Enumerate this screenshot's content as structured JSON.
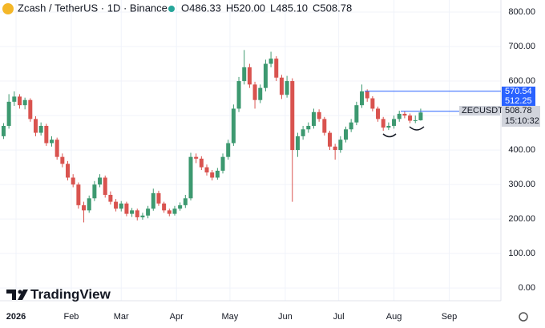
{
  "chart_data": {
    "type": "candlestick",
    "title": "Zcash / TetherUS · 1D · Binance",
    "ohlc_legend": [
      "O486.33",
      "H520.00",
      "L485.10",
      "C508.78"
    ],
    "watermark": "TradingView",
    "up_color": "#3d9970",
    "down_color": "#d9534f",
    "xlim": [
      -9,
      272
    ],
    "ylim": [
      -37,
      835
    ],
    "xticks": [
      {
        "value": 0,
        "label": "2026"
      },
      {
        "value": 31,
        "label": "Feb"
      },
      {
        "value": 59,
        "label": "Mar"
      },
      {
        "value": 90,
        "label": "Apr"
      },
      {
        "value": 120,
        "label": "May"
      },
      {
        "value": 151,
        "label": "Jun"
      },
      {
        "value": 181,
        "label": "Jul"
      },
      {
        "value": 212,
        "label": "Aug"
      },
      {
        "value": 243,
        "label": "Sep"
      }
    ],
    "yticks": [
      {
        "value": 0,
        "label": "0.00"
      },
      {
        "value": 100,
        "label": "100.00"
      },
      {
        "value": 200,
        "label": "200.00"
      },
      {
        "value": 300,
        "label": "300.00"
      },
      {
        "value": 400,
        "label": "400.00"
      },
      {
        "value": 500,
        "label": "500.00"
      },
      {
        "value": 600,
        "label": "600.00"
      },
      {
        "value": 700,
        "label": "700.00"
      },
      {
        "value": 800,
        "label": "800.00"
      }
    ],
    "grid": true,
    "price_lines": [
      {
        "value": 570.54,
        "color": "#2962ff"
      },
      {
        "value": 512.25,
        "color": "#2962ff"
      }
    ],
    "last_price": {
      "symbol": "ZECUSDT",
      "value": 508.78,
      "countdown": "15:10:32",
      "color": "#d1d4dc"
    },
    "candles": [
      [
        -7,
        440,
        478,
        432,
        470
      ],
      [
        -4,
        470,
        562,
        462,
        540
      ],
      [
        -1,
        540,
        570,
        528,
        555
      ],
      [
        2,
        555,
        562,
        520,
        530
      ],
      [
        5,
        530,
        552,
        518,
        545
      ],
      [
        8,
        545,
        550,
        482,
        490
      ],
      [
        11,
        490,
        498,
        440,
        450
      ],
      [
        14,
        450,
        480,
        442,
        470
      ],
      [
        17,
        470,
        476,
        412,
        420
      ],
      [
        20,
        420,
        440,
        410,
        430
      ],
      [
        23,
        430,
        436,
        372,
        380
      ],
      [
        26,
        380,
        390,
        350,
        360
      ],
      [
        29,
        360,
        368,
        312,
        320
      ],
      [
        32,
        320,
        330,
        292,
        300
      ],
      [
        35,
        300,
        306,
        230,
        240
      ],
      [
        38,
        240,
        250,
        190,
        225
      ],
      [
        41,
        225,
        268,
        218,
        260
      ],
      [
        44,
        260,
        310,
        252,
        300
      ],
      [
        47,
        300,
        330,
        292,
        320
      ],
      [
        50,
        320,
        326,
        262,
        270
      ],
      [
        53,
        270,
        280,
        242,
        250
      ],
      [
        56,
        250,
        258,
        222,
        230
      ],
      [
        59,
        230,
        252,
        222,
        245
      ],
      [
        62,
        245,
        250,
        208,
        215
      ],
      [
        65,
        215,
        232,
        206,
        225
      ],
      [
        68,
        225,
        230,
        196,
        205
      ],
      [
        71,
        205,
        218,
        198,
        210
      ],
      [
        74,
        210,
        238,
        202,
        230
      ],
      [
        77,
        230,
        288,
        224,
        275
      ],
      [
        80,
        275,
        282,
        238,
        245
      ],
      [
        83,
        245,
        250,
        218,
        225
      ],
      [
        86,
        225,
        230,
        208,
        215
      ],
      [
        89,
        215,
        238,
        210,
        230
      ],
      [
        92,
        230,
        248,
        224,
        240
      ],
      [
        95,
        240,
        270,
        232,
        260
      ],
      [
        98,
        260,
        392,
        254,
        380
      ],
      [
        101,
        380,
        390,
        362,
        375
      ],
      [
        104,
        375,
        382,
        342,
        350
      ],
      [
        107,
        350,
        358,
        326,
        335
      ],
      [
        110,
        335,
        342,
        312,
        320
      ],
      [
        113,
        320,
        348,
        314,
        340
      ],
      [
        116,
        340,
        390,
        332,
        380
      ],
      [
        119,
        380,
        430,
        372,
        420
      ],
      [
        122,
        420,
        532,
        412,
        520
      ],
      [
        125,
        520,
        612,
        510,
        600
      ],
      [
        128,
        600,
        690,
        590,
        640
      ],
      [
        131,
        640,
        650,
        580,
        590
      ],
      [
        134,
        590,
        598,
        520,
        545
      ],
      [
        137,
        545,
        590,
        536,
        580
      ],
      [
        140,
        580,
        662,
        570,
        650
      ],
      [
        143,
        650,
        685,
        640,
        665
      ],
      [
        146,
        665,
        672,
        600,
        610
      ],
      [
        149,
        610,
        618,
        548,
        560
      ],
      [
        152,
        560,
        615,
        552,
        600
      ],
      [
        155,
        600,
        608,
        250,
        400
      ],
      [
        158,
        400,
        450,
        380,
        440
      ],
      [
        161,
        440,
        470,
        430,
        460
      ],
      [
        164,
        460,
        480,
        450,
        470
      ],
      [
        167,
        470,
        520,
        462,
        510
      ],
      [
        170,
        510,
        518,
        482,
        490
      ],
      [
        173,
        490,
        496,
        442,
        450
      ],
      [
        176,
        450,
        456,
        400,
        410
      ],
      [
        179,
        410,
        418,
        372,
        400
      ],
      [
        182,
        400,
        440,
        392,
        430
      ],
      [
        185,
        430,
        468,
        422,
        460
      ],
      [
        188,
        460,
        490,
        452,
        480
      ],
      [
        191,
        480,
        540,
        472,
        530
      ],
      [
        194,
        530,
        590,
        522,
        570
      ],
      [
        197,
        570,
        576,
        540,
        550
      ],
      [
        200,
        550,
        556,
        512,
        520
      ],
      [
        203,
        520,
        526,
        482,
        490
      ],
      [
        206,
        490,
        496,
        456,
        465
      ],
      [
        209,
        465,
        480,
        458,
        470
      ],
      [
        212,
        470,
        500,
        462,
        490
      ],
      [
        215,
        490,
        514,
        482,
        505
      ],
      [
        218,
        505,
        512,
        492,
        500
      ],
      [
        221,
        500,
        506,
        478,
        485
      ],
      [
        224,
        485,
        500,
        478,
        486.33
      ],
      [
        227,
        486.33,
        520,
        485.1,
        508.78
      ]
    ]
  }
}
